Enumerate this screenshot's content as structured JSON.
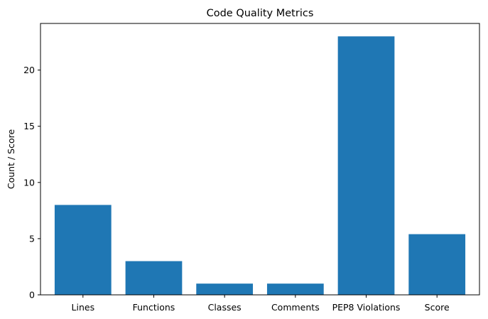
{
  "chart_data": {
    "type": "bar",
    "title": "Code Quality Metrics",
    "xlabel": "",
    "ylabel": "Count / Score",
    "categories": [
      "Lines",
      "Functions",
      "Classes",
      "Comments",
      "PEP8 Violations",
      "Score"
    ],
    "values": [
      8,
      3,
      1,
      1,
      23,
      5.4
    ],
    "ylim": [
      0,
      24.15
    ],
    "yticks": [
      0,
      5,
      10,
      15,
      20
    ],
    "grid": false,
    "legend": "none",
    "bar_color": "#1f77b4",
    "axis_color": "#000000"
  }
}
